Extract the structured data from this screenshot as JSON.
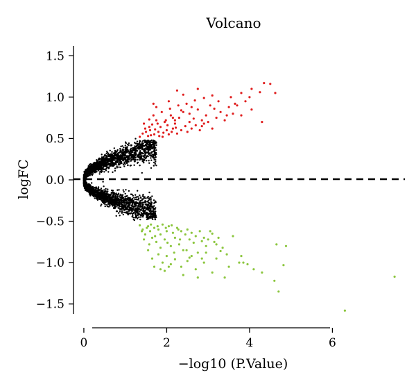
{
  "chart_data": {
    "type": "scatter",
    "title": "Volcano",
    "xlabel": "−log10 (P.Value)",
    "ylabel": "logFC",
    "xlim": [
      -0.25,
      7.75
    ],
    "ylim": [
      -1.62,
      1.62
    ],
    "x_ticks": [
      0,
      2,
      4,
      6
    ],
    "x_tick_labels": [
      "0",
      "2",
      "4",
      "6"
    ],
    "y_ticks": [
      -1.5,
      -1.0,
      -0.5,
      0.0,
      0.5,
      1.0,
      1.5
    ],
    "y_tick_labels": [
      "−1.5",
      "−1.0",
      "−0.5",
      "0.0",
      "0.5",
      "1.0",
      "1.5"
    ],
    "grid": false,
    "legend": "none",
    "reference_line": {
      "y": 0,
      "style": "dashed",
      "color": "#000000"
    },
    "series": [
      {
        "color": "#e01e1e",
        "points": [
          [
            1.35,
            0.52
          ],
          [
            1.42,
            0.56
          ],
          [
            1.48,
            0.62
          ],
          [
            1.55,
            0.53
          ],
          [
            1.6,
            0.6
          ],
          [
            1.65,
            0.67
          ],
          [
            1.7,
            0.55
          ],
          [
            1.75,
            0.72
          ],
          [
            1.8,
            0.58
          ],
          [
            1.85,
            0.64
          ],
          [
            1.9,
            0.52
          ],
          [
            1.95,
            0.7
          ],
          [
            2.0,
            0.6
          ],
          [
            2.05,
            0.55
          ],
          [
            2.1,
            0.78
          ],
          [
            2.15,
            0.62
          ],
          [
            2.2,
            0.68
          ],
          [
            2.25,
            0.56
          ],
          [
            2.3,
            0.75
          ],
          [
            2.35,
            0.6
          ],
          [
            2.4,
            0.82
          ],
          [
            2.45,
            0.65
          ],
          [
            2.5,
            0.58
          ],
          [
            2.55,
            0.7
          ],
          [
            2.6,
            0.62
          ],
          [
            2.65,
            0.74
          ],
          [
            2.7,
            0.66
          ],
          [
            2.75,
            0.85
          ],
          [
            2.8,
            0.6
          ],
          [
            2.85,
            0.72
          ],
          [
            2.9,
            0.68
          ],
          [
            2.95,
            0.78
          ],
          [
            3.0,
            0.7
          ],
          [
            3.1,
            0.62
          ],
          [
            3.2,
            0.75
          ],
          [
            3.3,
            0.82
          ],
          [
            3.4,
            0.72
          ],
          [
            3.5,
            0.88
          ],
          [
            3.6,
            0.8
          ],
          [
            3.7,
            0.9
          ],
          [
            3.8,
            0.78
          ],
          [
            3.9,
            0.95
          ],
          [
            4.05,
            0.85
          ],
          [
            4.3,
            0.7
          ],
          [
            1.5,
            0.58
          ],
          [
            1.62,
            0.54
          ],
          [
            1.72,
            0.61
          ],
          [
            1.82,
            0.53
          ],
          [
            1.92,
            0.57
          ],
          [
            2.02,
            0.66
          ],
          [
            2.12,
            0.58
          ],
          [
            2.22,
            0.63
          ],
          [
            1.45,
            0.68
          ],
          [
            1.58,
            0.73
          ],
          [
            1.68,
            0.78
          ],
          [
            1.88,
            0.82
          ],
          [
            2.08,
            0.86
          ],
          [
            2.28,
            0.9
          ],
          [
            2.48,
            0.92
          ],
          [
            2.68,
            0.96
          ],
          [
            2.9,
            0.99
          ],
          [
            3.1,
            1.02
          ],
          [
            3.05,
            0.9
          ],
          [
            3.25,
            0.95
          ],
          [
            3.55,
            1.0
          ],
          [
            3.8,
            1.05
          ],
          [
            4.0,
            1.0
          ],
          [
            4.05,
            1.1
          ],
          [
            4.25,
            1.06
          ],
          [
            4.35,
            1.17
          ],
          [
            4.5,
            1.16
          ],
          [
            4.62,
            1.05
          ],
          [
            3.15,
            0.86
          ],
          [
            3.45,
            0.78
          ],
          [
            2.6,
            0.88
          ],
          [
            2.35,
            0.84
          ],
          [
            2.15,
            0.75
          ],
          [
            1.98,
            0.72
          ],
          [
            1.78,
            0.68
          ],
          [
            1.58,
            0.64
          ],
          [
            2.4,
            1.03
          ],
          [
            2.05,
            0.95
          ],
          [
            2.75,
            1.1
          ],
          [
            1.68,
            0.92
          ],
          [
            2.25,
            1.08
          ],
          [
            3.65,
            0.92
          ],
          [
            2.2,
            0.72
          ],
          [
            2.55,
            0.8
          ],
          [
            2.85,
            0.65
          ],
          [
            1.75,
            0.88
          ]
        ]
      },
      {
        "color": "#8cc63f",
        "points": [
          [
            1.35,
            -0.55
          ],
          [
            1.42,
            -0.6
          ],
          [
            1.48,
            -0.66
          ],
          [
            1.55,
            -0.56
          ],
          [
            1.6,
            -0.62
          ],
          [
            1.65,
            -0.7
          ],
          [
            1.7,
            -0.58
          ],
          [
            1.75,
            -0.75
          ],
          [
            1.8,
            -0.6
          ],
          [
            1.85,
            -0.66
          ],
          [
            1.9,
            -0.54
          ],
          [
            1.95,
            -0.72
          ],
          [
            2.0,
            -0.62
          ],
          [
            2.05,
            -0.56
          ],
          [
            2.1,
            -0.8
          ],
          [
            2.15,
            -0.64
          ],
          [
            2.2,
            -0.7
          ],
          [
            2.25,
            -0.58
          ],
          [
            2.3,
            -0.78
          ],
          [
            2.35,
            -0.62
          ],
          [
            2.4,
            -0.85
          ],
          [
            2.45,
            -0.66
          ],
          [
            2.5,
            -0.6
          ],
          [
            2.55,
            -0.72
          ],
          [
            2.6,
            -0.64
          ],
          [
            2.65,
            -0.76
          ],
          [
            2.7,
            -0.68
          ],
          [
            2.75,
            -0.88
          ],
          [
            2.8,
            -0.62
          ],
          [
            2.85,
            -0.74
          ],
          [
            2.9,
            -0.7
          ],
          [
            2.95,
            -0.8
          ],
          [
            3.0,
            -0.72
          ],
          [
            3.1,
            -0.65
          ],
          [
            3.2,
            -0.78
          ],
          [
            3.3,
            -0.86
          ],
          [
            1.55,
            -0.85
          ],
          [
            1.65,
            -0.95
          ],
          [
            1.8,
            -0.9
          ],
          [
            1.9,
            -1.0
          ],
          [
            2.0,
            -0.92
          ],
          [
            2.1,
            -1.02
          ],
          [
            2.2,
            -0.96
          ],
          [
            2.35,
            -1.05
          ],
          [
            2.5,
            -0.98
          ],
          [
            2.7,
            -1.08
          ],
          [
            2.9,
            -1.0
          ],
          [
            3.1,
            -1.12
          ],
          [
            1.7,
            -1.05
          ],
          [
            1.95,
            -1.1
          ],
          [
            2.4,
            -1.15
          ],
          [
            3.2,
            -0.95
          ],
          [
            3.35,
            -0.82
          ],
          [
            3.5,
            -1.05
          ],
          [
            3.8,
            -0.92
          ],
          [
            3.85,
            -1.0
          ],
          [
            3.95,
            -1.02
          ],
          [
            4.1,
            -1.08
          ],
          [
            4.3,
            -1.12
          ],
          [
            4.6,
            -1.22
          ],
          [
            3.4,
            -1.18
          ],
          [
            2.75,
            -1.18
          ],
          [
            1.45,
            -0.72
          ],
          [
            1.58,
            -0.78
          ],
          [
            1.72,
            -0.68
          ],
          [
            1.85,
            -0.82
          ],
          [
            2.02,
            -0.76
          ],
          [
            2.18,
            -0.88
          ],
          [
            2.32,
            -0.72
          ],
          [
            2.48,
            -0.85
          ],
          [
            1.4,
            -0.62
          ],
          [
            1.52,
            -0.58
          ],
          [
            1.62,
            -0.54
          ],
          [
            1.78,
            -0.56
          ],
          [
            1.98,
            -0.58
          ],
          [
            2.12,
            -0.55
          ],
          [
            2.28,
            -0.6
          ],
          [
            3.05,
            -0.62
          ],
          [
            3.6,
            -0.68
          ],
          [
            4.7,
            -1.35
          ],
          [
            4.88,
            -0.8
          ],
          [
            4.82,
            -1.03
          ],
          [
            4.65,
            -0.78
          ],
          [
            6.3,
            -1.58
          ],
          [
            7.5,
            -1.17
          ],
          [
            2.6,
            -0.92
          ],
          [
            2.85,
            -0.95
          ],
          [
            3.15,
            -0.75
          ],
          [
            3.25,
            -0.7
          ],
          [
            3.75,
            -1.0
          ],
          [
            2.05,
            -1.05
          ],
          [
            1.85,
            -1.08
          ],
          [
            2.95,
            -0.88
          ],
          [
            3.45,
            -0.9
          ],
          [
            2.55,
            -0.94
          ]
        ]
      }
    ]
  }
}
